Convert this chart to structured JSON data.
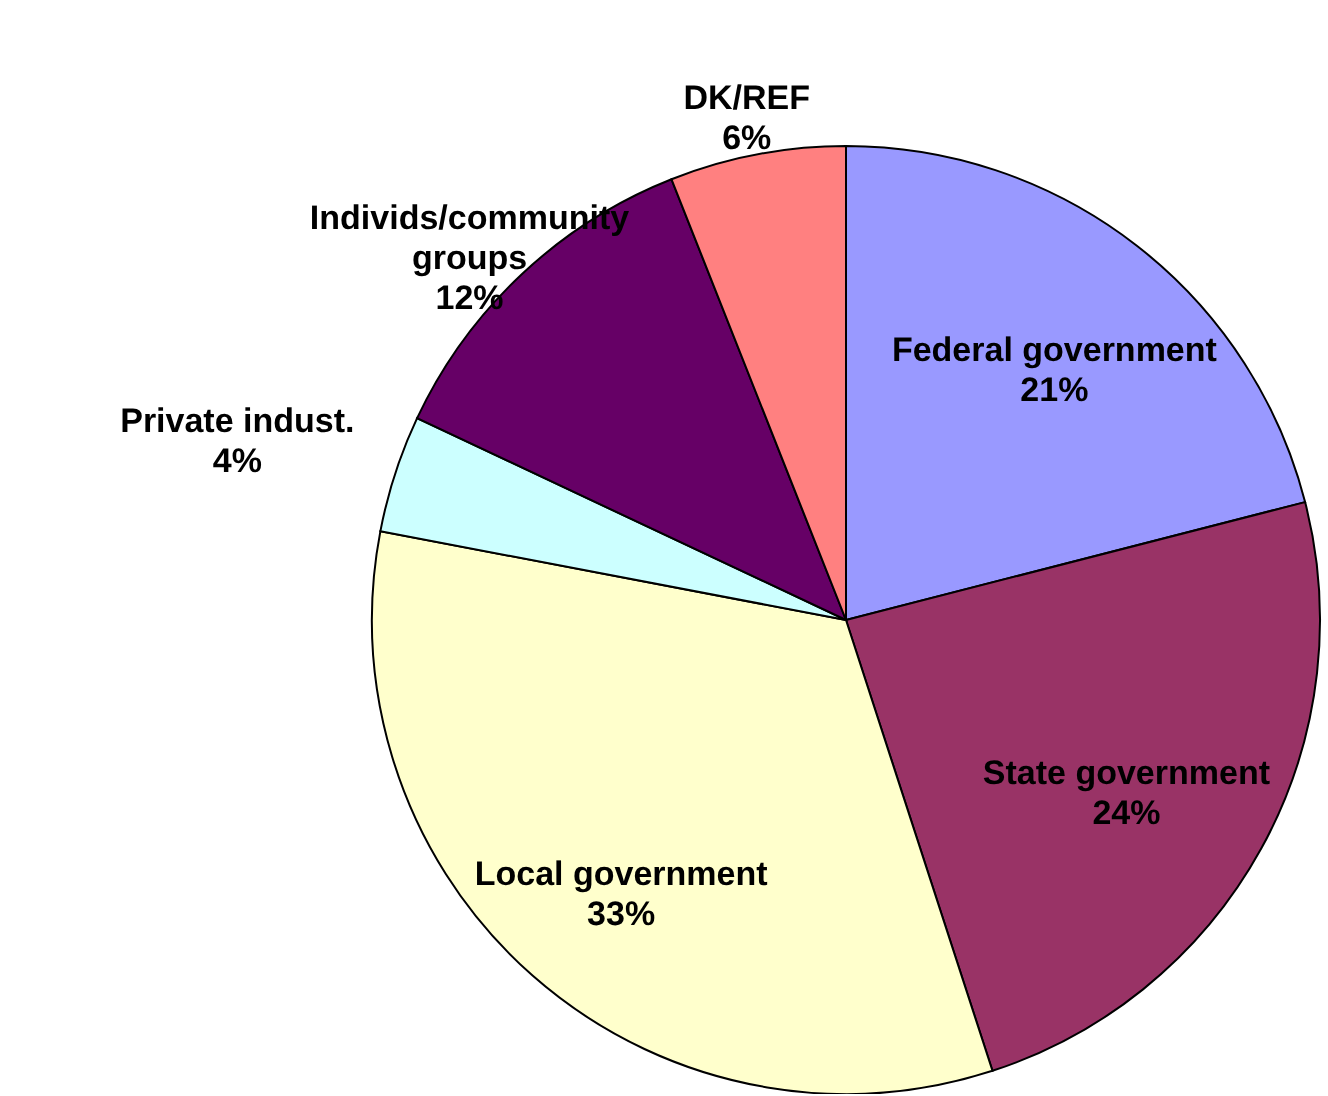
{
  "chart_data": {
    "type": "pie",
    "categories": [
      "Federal government",
      "State government",
      "Local government",
      "Private indust.",
      "Individs/community groups",
      "DK/REF"
    ],
    "values": [
      21,
      24,
      33,
      4,
      12,
      6
    ],
    "value_labels": [
      "21%",
      "24%",
      "33%",
      "4%",
      "12%",
      "6%"
    ],
    "colors": [
      "#9999ff",
      "#993366",
      "#ffffcc",
      "#ccffff",
      "#660066",
      "#ff8080"
    ]
  }
}
